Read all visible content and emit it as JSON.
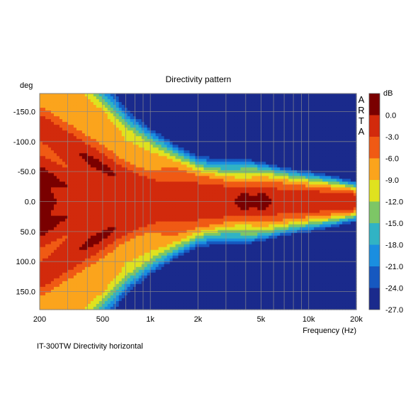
{
  "chart_data": {
    "type": "heatmap",
    "title": "Directivity pattern",
    "ylabel": "deg",
    "xlabel": "Frequency (Hz)",
    "caption": "IT-300TW Directivity horizontal",
    "watermark": "ARTA",
    "x_scale": "log",
    "xlim": [
      200,
      20000
    ],
    "ylim": [
      -180,
      180
    ],
    "y_inverted": true,
    "grid": true,
    "x_ticks": [
      {
        "value": 200,
        "label": "200"
      },
      {
        "value": 500,
        "label": "500"
      },
      {
        "value": 1000,
        "label": "1k"
      },
      {
        "value": 2000,
        "label": "2k"
      },
      {
        "value": 5000,
        "label": "5k"
      },
      {
        "value": 10000,
        "label": "10k"
      },
      {
        "value": 20000,
        "label": "20k"
      }
    ],
    "x_minor_grid": [
      300,
      400,
      600,
      700,
      800,
      900,
      3000,
      4000,
      6000,
      7000,
      8000,
      9000
    ],
    "y_ticks": [
      {
        "value": -150,
        "label": "-150.0"
      },
      {
        "value": -100,
        "label": "-100.0"
      },
      {
        "value": -50,
        "label": "-50.0"
      },
      {
        "value": 0,
        "label": "0.0"
      },
      {
        "value": 50,
        "label": "50.0"
      },
      {
        "value": 100,
        "label": "100.0"
      },
      {
        "value": 150,
        "label": "150.0"
      }
    ],
    "colorbar": {
      "unit": "dB",
      "range": [
        -27,
        3
      ],
      "ticks": [
        {
          "value": 0,
          "label": "0.0"
        },
        {
          "value": -3,
          "label": "-3.0"
        },
        {
          "value": -6,
          "label": "-6.0"
        },
        {
          "value": -9,
          "label": "-9.0"
        },
        {
          "value": -12,
          "label": "-12.0"
        },
        {
          "value": -15,
          "label": "-15.0"
        },
        {
          "value": -18,
          "label": "-18.0"
        },
        {
          "value": -21,
          "label": "-21.0"
        },
        {
          "value": -24,
          "label": "-24.0"
        },
        {
          "value": -27,
          "label": "-27.0"
        }
      ],
      "bands": [
        {
          "from": 0,
          "to": 3,
          "color": "#7a0000"
        },
        {
          "from": -3,
          "to": 0,
          "color": "#d22a0c"
        },
        {
          "from": -6,
          "to": -3,
          "color": "#f05a14"
        },
        {
          "from": -9,
          "to": -6,
          "color": "#fba41c"
        },
        {
          "from": -12,
          "to": -9,
          "color": "#dfe21f"
        },
        {
          "from": -15,
          "to": -12,
          "color": "#7dc666"
        },
        {
          "from": -18,
          "to": -15,
          "color": "#31b3c4"
        },
        {
          "from": -21,
          "to": -18,
          "color": "#1a8ee0"
        },
        {
          "from": -24,
          "to": -21,
          "color": "#1658c0"
        },
        {
          "from": -30,
          "to": -24,
          "color": "#1a2a8c"
        }
      ]
    },
    "beamwidth_6db_deg": [
      {
        "freq": 200,
        "half_angle": 175
      },
      {
        "freq": 300,
        "half_angle": 150
      },
      {
        "freq": 450,
        "half_angle": 120
      },
      {
        "freq": 700,
        "half_angle": 80
      },
      {
        "freq": 1000,
        "half_angle": 62
      },
      {
        "freq": 1500,
        "half_angle": 48
      },
      {
        "freq": 2000,
        "half_angle": 40
      },
      {
        "freq": 3000,
        "half_angle": 36
      },
      {
        "freq": 5000,
        "half_angle": 32
      },
      {
        "freq": 10000,
        "half_angle": 26
      },
      {
        "freq": 20000,
        "half_angle": 16
      }
    ],
    "hot_spots": [
      {
        "freq": 210,
        "angle": 0,
        "level": 1.5
      },
      {
        "freq": 4000,
        "angle": 0,
        "level": 1.0
      },
      {
        "freq": 5000,
        "angle": 0,
        "level": 1.0
      }
    ]
  }
}
